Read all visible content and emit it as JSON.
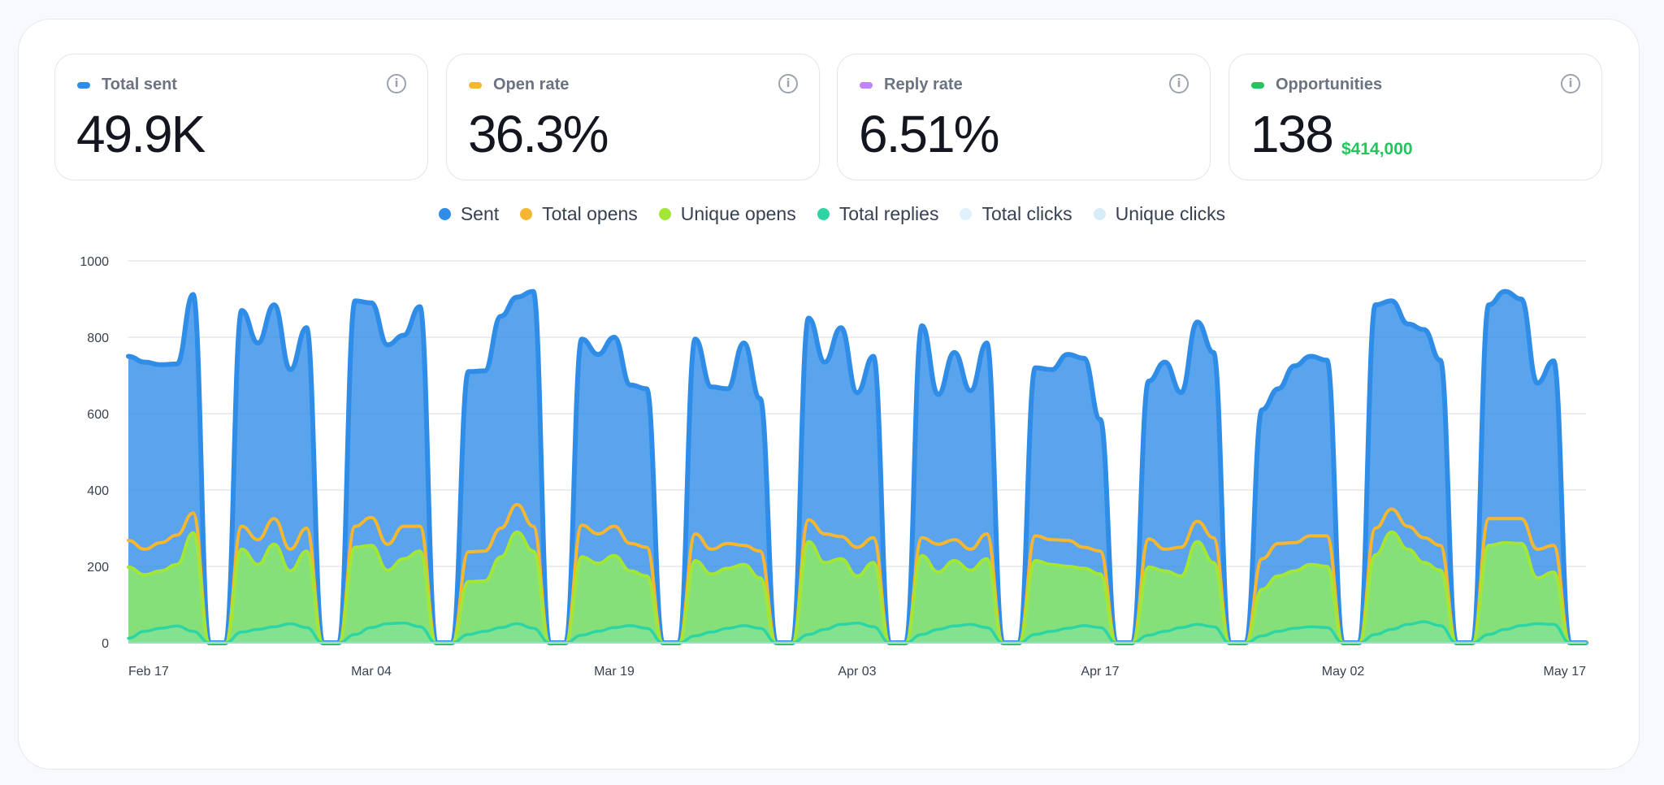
{
  "colors": {
    "sent": "#2f8de8",
    "total_opens": "#f5b731",
    "unique_opens": "#a3e635",
    "total_replies": "#2dd4a4",
    "total_clicks": "#dff1fa",
    "unique_clicks": "#d6ecf8",
    "opportunities_amount": "#22c55e"
  },
  "cards": [
    {
      "title": "Total sent",
      "value": "49.9K",
      "accent": "#2f8de8",
      "icon": "info-icon"
    },
    {
      "title": "Open rate",
      "value": "36.3%",
      "accent": "#f5b731",
      "icon": "info-icon"
    },
    {
      "title": "Reply rate",
      "value": "6.51%",
      "accent": "#c084fc",
      "icon": "info-icon"
    },
    {
      "title": "Opportunities",
      "value": "138",
      "sub": "$414,000",
      "accent": "#22c55e",
      "icon": "info-icon"
    }
  ],
  "legend": [
    {
      "label": "Sent",
      "color": "#2f8de8"
    },
    {
      "label": "Total opens",
      "color": "#f5b731"
    },
    {
      "label": "Unique opens",
      "color": "#a3e635"
    },
    {
      "label": "Total replies",
      "color": "#2dd4a4"
    },
    {
      "label": "Total clicks",
      "color": "#dff1fa"
    },
    {
      "label": "Unique clicks",
      "color": "#d6ecf8"
    }
  ],
  "chart_data": {
    "type": "area",
    "x_ticks": [
      "Feb 17",
      "Mar 04",
      "Mar 19",
      "Apr 03",
      "Apr 17",
      "May 02",
      "May 17"
    ],
    "y_ticks": [
      0,
      200,
      400,
      600,
      800,
      1000
    ],
    "ylim": [
      0,
      1000
    ],
    "grid": true,
    "legend_position": "top",
    "weeks": [
      {
        "sent": [
          750,
          735,
          728,
          730,
          912
        ],
        "total_opens": [
          268,
          245,
          262,
          282,
          340
        ],
        "unique_opens": [
          198,
          178,
          188,
          205,
          288
        ],
        "total_replies": [
          12,
          30,
          38,
          44,
          30
        ]
      },
      {
        "sent": [
          870,
          785,
          885,
          715,
          825
        ],
        "total_opens": [
          305,
          270,
          325,
          245,
          300
        ],
        "unique_opens": [
          245,
          205,
          258,
          188,
          240
        ],
        "total_replies": [
          28,
          35,
          42,
          50,
          40
        ]
      },
      {
        "sent": [
          895,
          890,
          780,
          805,
          880
        ],
        "total_opens": [
          305,
          328,
          258,
          305,
          305
        ],
        "unique_opens": [
          250,
          255,
          190,
          220,
          240
        ],
        "total_replies": [
          22,
          40,
          50,
          52,
          42
        ]
      },
      {
        "sent": [
          710,
          712,
          855,
          905,
          920
        ],
        "total_opens": [
          238,
          240,
          300,
          362,
          305
        ],
        "unique_opens": [
          160,
          162,
          225,
          290,
          240
        ],
        "total_replies": [
          22,
          30,
          40,
          50,
          38
        ]
      },
      {
        "sent": [
          795,
          755,
          800,
          675,
          665
        ],
        "total_opens": [
          308,
          285,
          305,
          260,
          250
        ],
        "unique_opens": [
          225,
          208,
          228,
          188,
          175
        ],
        "total_replies": [
          20,
          30,
          40,
          45,
          38
        ]
      },
      {
        "sent": [
          795,
          670,
          665,
          785,
          640
        ],
        "total_opens": [
          285,
          245,
          260,
          255,
          240
        ],
        "unique_opens": [
          215,
          180,
          195,
          205,
          170
        ],
        "total_replies": [
          18,
          28,
          38,
          45,
          38
        ]
      },
      {
        "sent": [
          850,
          735,
          825,
          655,
          750
        ],
        "total_opens": [
          322,
          285,
          278,
          250,
          275
        ],
        "unique_opens": [
          265,
          210,
          220,
          175,
          210
        ],
        "total_replies": [
          22,
          35,
          48,
          52,
          42
        ]
      },
      {
        "sent": [
          830,
          650,
          760,
          660,
          785
        ],
        "total_opens": [
          275,
          258,
          270,
          245,
          285
        ],
        "unique_opens": [
          228,
          185,
          215,
          190,
          220
        ],
        "total_replies": [
          22,
          35,
          44,
          48,
          40
        ]
      },
      {
        "sent": [
          720,
          715,
          755,
          745,
          585
        ],
        "total_opens": [
          280,
          270,
          268,
          250,
          240
        ],
        "unique_opens": [
          215,
          205,
          200,
          195,
          180
        ],
        "total_replies": [
          22,
          30,
          38,
          45,
          40
        ]
      },
      {
        "sent": [
          685,
          735,
          655,
          840,
          760
        ],
        "total_opens": [
          272,
          245,
          250,
          318,
          275
        ],
        "unique_opens": [
          198,
          188,
          175,
          265,
          210
        ],
        "total_replies": [
          20,
          30,
          40,
          48,
          42
        ]
      },
      {
        "sent": [
          610,
          665,
          725,
          750,
          740
        ],
        "total_opens": [
          220,
          260,
          262,
          280,
          280
        ],
        "unique_opens": [
          140,
          175,
          188,
          205,
          200
        ],
        "total_replies": [
          18,
          30,
          38,
          42,
          40
        ]
      },
      {
        "sent": [
          885,
          895,
          835,
          820,
          740
        ],
        "total_opens": [
          300,
          350,
          305,
          275,
          255
        ],
        "unique_opens": [
          230,
          290,
          245,
          210,
          190
        ],
        "total_replies": [
          22,
          35,
          48,
          55,
          45
        ]
      },
      {
        "sent": [
          885,
          920,
          900,
          680,
          738
        ],
        "total_opens": [
          325,
          325,
          325,
          245,
          255
        ],
        "unique_opens": [
          255,
          262,
          260,
          170,
          185
        ],
        "total_replies": [
          22,
          35,
          45,
          50,
          48
        ]
      }
    ]
  }
}
